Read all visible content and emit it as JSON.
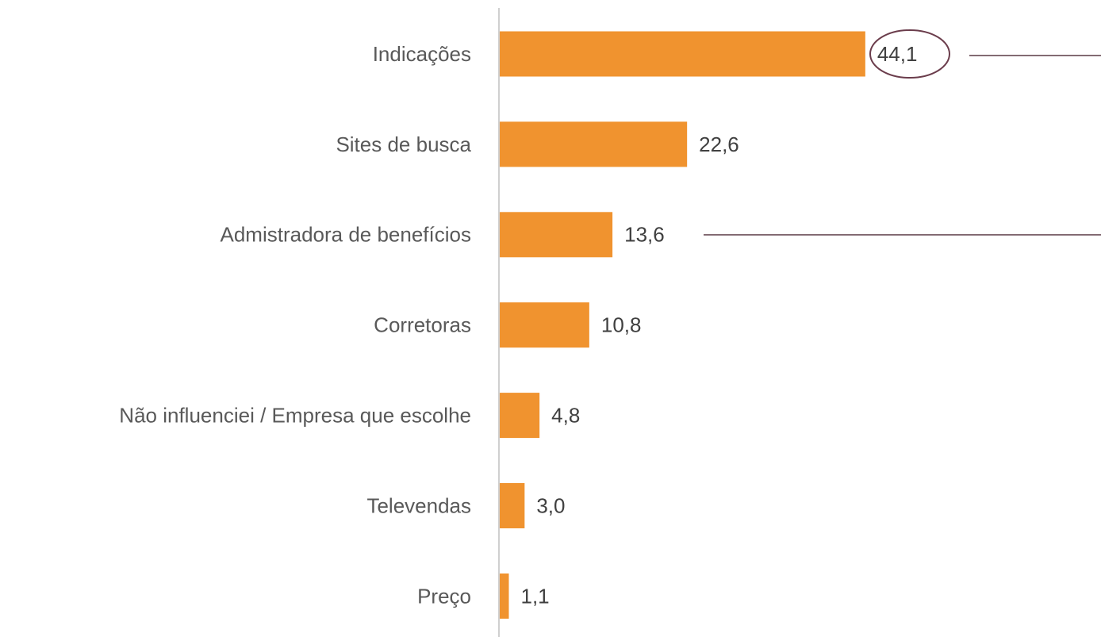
{
  "chart_data": {
    "type": "hbar",
    "categories": [
      "Indicações",
      "Sites de busca",
      "Admistradora de benefícios",
      "Corretoras",
      "Não influenciei / Empresa que escolhe",
      "Televendas",
      "Preço"
    ],
    "values": [
      44.1,
      22.6,
      13.6,
      10.8,
      4.8,
      3.0,
      1.1
    ],
    "value_labels": [
      "44,1",
      "22,6",
      "13,6",
      "10,8",
      "4,8",
      "3,0",
      "1,1"
    ],
    "color": "#f0932f"
  }
}
